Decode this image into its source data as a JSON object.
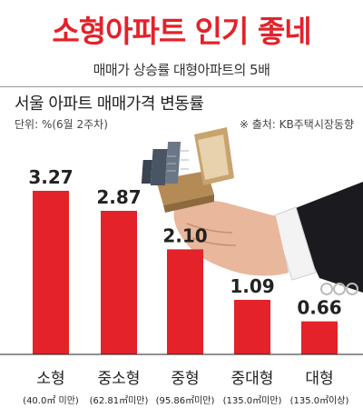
{
  "headline": "소형아파트 인기 좋네",
  "subheadline": "매매가 상승률 대형아파트의 5배",
  "colors": {
    "accent": "#e32229",
    "bar": "#e32229"
  },
  "chart_data": {
    "type": "bar",
    "title": "서울 아파트 매매가격 변동률",
    "unit": "단위: %(6월 2주차)",
    "source": "※ 출처: KB주택시장동향",
    "ylim": [
      0,
      3.5
    ],
    "categories": [
      "소형",
      "중소형",
      "중형",
      "중대형",
      "대형"
    ],
    "notes": [
      "(40.0㎡ 미만)",
      "(62.81㎡미만)",
      "(95.86㎡미만)",
      "(135.0㎡미만)",
      "(135.0㎡이상)"
    ],
    "values": [
      3.27,
      2.87,
      2.1,
      1.09,
      0.66
    ],
    "value_labels": [
      "3.27",
      "2.87",
      "2.10",
      "1.09",
      "0.66"
    ]
  }
}
